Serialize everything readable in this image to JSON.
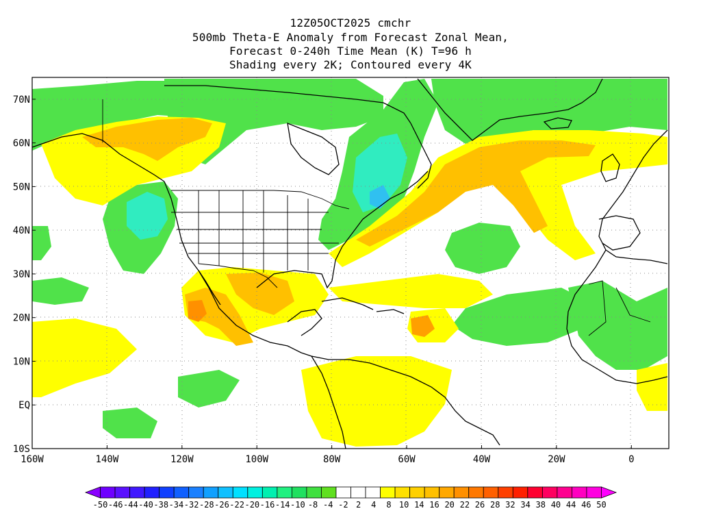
{
  "title": {
    "line1": "12Z05OCT2025 cmchr",
    "line2": "500mb Theta-E Anomaly from Forecast Zonal Mean,",
    "line3": "Forecast 0-240h Time Mean (K) T=96 h",
    "line4": "Shading every 2K; Contoured every 4K"
  },
  "axes": {
    "lat_labels": [
      "70N",
      "60N",
      "50N",
      "40N",
      "30N",
      "20N",
      "10N",
      "EQ",
      "10S"
    ],
    "lat_values": [
      70,
      60,
      50,
      40,
      30,
      20,
      10,
      0,
      -10
    ],
    "lon_labels": [
      "160W",
      "140W",
      "120W",
      "100W",
      "80W",
      "60W",
      "40W",
      "20W",
      "0"
    ],
    "lon_values": [
      -160,
      -140,
      -120,
      -100,
      -80,
      -60,
      -40,
      -20,
      0
    ],
    "lon_range": [
      -160,
      10
    ],
    "lat_range": [
      -10,
      75
    ],
    "grid": "dotted"
  },
  "colorbar": {
    "labels": [
      "-50",
      "-46",
      "-44",
      "-40",
      "-38",
      "-34",
      "-32",
      "-28",
      "-26",
      "-22",
      "-20",
      "-16",
      "-14",
      "-10",
      "-8",
      "-4",
      "-2",
      "2",
      "4",
      "8",
      "10",
      "14",
      "16",
      "20",
      "22",
      "26",
      "28",
      "32",
      "34",
      "38",
      "40",
      "44",
      "46",
      "50"
    ],
    "colors": [
      "#8a00ff",
      "#6e00ff",
      "#5a10ff",
      "#4018ff",
      "#2020ff",
      "#1040ff",
      "#1060ff",
      "#1a80ff",
      "#10a0ff",
      "#10c0ff",
      "#00e0ff",
      "#00f0e0",
      "#00f0b0",
      "#20f080",
      "#20e060",
      "#40e040",
      "#60e020",
      "#ffffff",
      "#ffffff",
      "#ffffff",
      "#ffff00",
      "#ffe000",
      "#ffd000",
      "#ffc000",
      "#ffa800",
      "#ff9000",
      "#ff7800",
      "#ff6000",
      "#ff4000",
      "#ff2000",
      "#ff0030",
      "#ff0060",
      "#ff0090",
      "#ff00c0",
      "#ff00e0",
      "#ff00ff"
    ]
  }
}
